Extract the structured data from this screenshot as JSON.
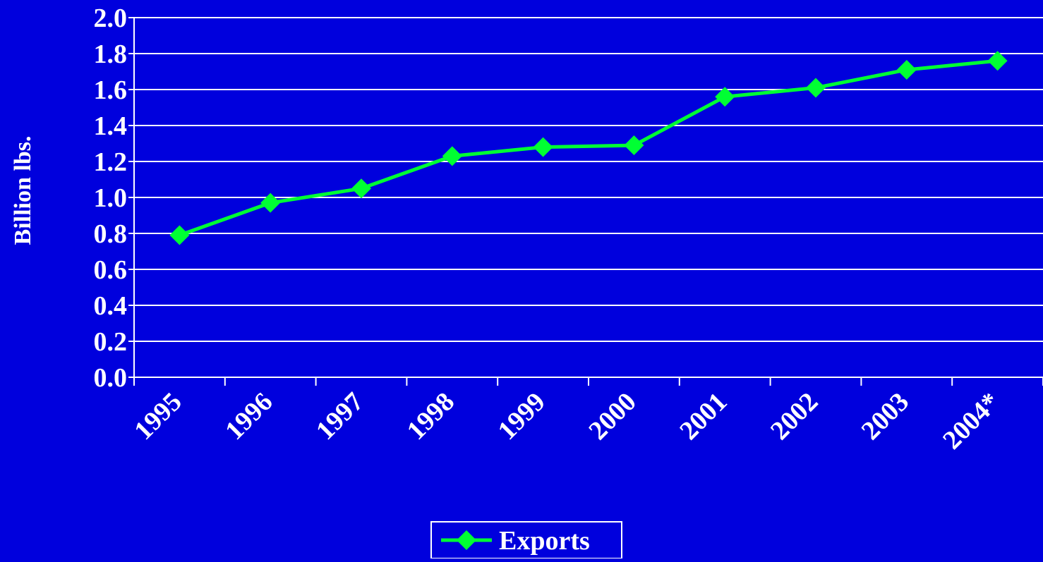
{
  "chart_data": {
    "type": "line",
    "title": "",
    "xlabel": "",
    "ylabel": "Billion lbs.",
    "categories": [
      "1995",
      "1996",
      "1997",
      "1998",
      "1999",
      "2000",
      "2001",
      "2002",
      "2003",
      "2004*"
    ],
    "series": [
      {
        "name": "Exports",
        "values": [
          0.79,
          0.97,
          1.05,
          1.23,
          1.28,
          1.29,
          1.56,
          1.61,
          1.71,
          1.76
        ]
      }
    ],
    "yticks": [
      "0.0",
      "0.2",
      "0.4",
      "0.6",
      "0.8",
      "1.0",
      "1.2",
      "1.4",
      "1.6",
      "1.8",
      "2.0"
    ],
    "ylim": [
      0,
      2.0
    ],
    "grid": "horizontal",
    "legend": "bottom-center",
    "colors": {
      "background": "#0000DD",
      "line": "#00FF33",
      "axis": "#FFFFFF",
      "text": "#FFFFFF"
    }
  }
}
